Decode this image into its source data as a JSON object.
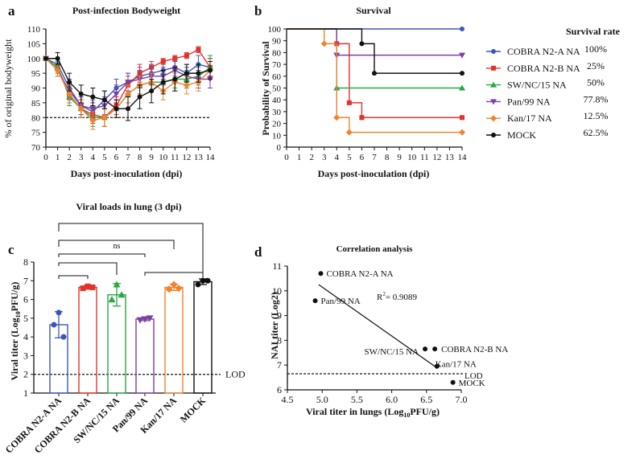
{
  "panel_a": {
    "letter": "a",
    "chart_data": {
      "type": "line",
      "title": "Post-infection Bodyweight",
      "xlabel": "Days post-inoculation (dpi)",
      "ylabel": "% of original bodyweight",
      "xlim": [
        0,
        14
      ],
      "ylim": [
        70,
        110
      ],
      "x_ticks": [
        0,
        1,
        2,
        3,
        4,
        5,
        6,
        7,
        8,
        9,
        10,
        11,
        12,
        13,
        14
      ],
      "y_ticks": [
        70,
        75,
        80,
        85,
        90,
        95,
        100,
        105,
        110
      ],
      "reference_line": 80,
      "x": [
        0,
        1,
        2,
        3,
        4,
        5,
        6,
        7,
        8,
        9,
        10,
        11,
        12,
        13,
        14
      ],
      "series": [
        {
          "name": "COBRA N2-A NA",
          "color": "#3b57b5",
          "marker": "circle",
          "values": [
            100,
            98,
            90,
            84,
            82,
            86,
            90,
            92,
            94,
            95,
            96,
            97,
            95,
            98,
            97
          ],
          "errors": [
            0,
            2,
            3,
            3,
            3,
            3,
            3,
            3,
            3,
            3,
            3,
            3,
            3,
            3,
            3
          ]
        },
        {
          "name": "COBRA N2-B NA",
          "color": "#e3322b",
          "marker": "square",
          "values": [
            100,
            97,
            88,
            83,
            81,
            80,
            84,
            91,
            95,
            97,
            99,
            100,
            101,
            103,
            97
          ],
          "errors": [
            0,
            2,
            3,
            3,
            3,
            3,
            3,
            3,
            3,
            2,
            1,
            1,
            1,
            1,
            3
          ]
        },
        {
          "name": "SW/NC/15 NA",
          "color": "#27a844",
          "marker": "triangle",
          "values": [
            100,
            97,
            87,
            83,
            80,
            80,
            83,
            88,
            91,
            92,
            92,
            93,
            93,
            94,
            97
          ],
          "errors": [
            0,
            2,
            3,
            3,
            3,
            3,
            3,
            3,
            3,
            3,
            3,
            3,
            3,
            3,
            4
          ]
        },
        {
          "name": "Pan/99 NA",
          "color": "#7e3fa5",
          "marker": "triangle-down",
          "values": [
            100,
            96,
            89,
            84,
            83,
            84,
            88,
            92,
            93,
            94,
            94,
            96,
            94,
            93,
            93
          ],
          "errors": [
            0,
            2,
            3,
            3,
            3,
            3,
            3,
            3,
            3,
            3,
            3,
            3,
            3,
            3,
            3
          ]
        },
        {
          "name": "Kan/17 NA",
          "color": "#f0822c",
          "marker": "diamond",
          "values": [
            100,
            96,
            88,
            83,
            79,
            80,
            83,
            88,
            91,
            92,
            89,
            92,
            91,
            92,
            96
          ],
          "errors": [
            0,
            2,
            3,
            3,
            3,
            3,
            3,
            3,
            3,
            3,
            3,
            3,
            3,
            3,
            3
          ]
        },
        {
          "name": "MOCK",
          "color": "#111111",
          "marker": "circle",
          "values": [
            100,
            100,
            92,
            88,
            87,
            86,
            83,
            83,
            87,
            89,
            92,
            93,
            95,
            95,
            96
          ],
          "errors": [
            0,
            2,
            3,
            3,
            3,
            3,
            3,
            4,
            4,
            4,
            4,
            4,
            3,
            3,
            3
          ]
        }
      ]
    }
  },
  "panel_b": {
    "letter": "b",
    "chart_data": {
      "type": "line",
      "step": true,
      "title": "Survival",
      "xlabel": "Days post-inoculation (dpi)",
      "ylabel": "Probability of Survival",
      "xlim": [
        0,
        14
      ],
      "ylim": [
        0,
        100
      ],
      "x_ticks": [
        0,
        1,
        2,
        3,
        4,
        5,
        6,
        7,
        8,
        9,
        10,
        11,
        12,
        13,
        14
      ],
      "y_ticks": [
        0,
        10,
        20,
        30,
        40,
        50,
        60,
        70,
        80,
        90,
        100
      ],
      "legend_title": "Survival rate",
      "series": [
        {
          "name": "COBRA N2-A NA",
          "color": "#3b57b5",
          "marker": "circle",
          "rate": "100%",
          "x": [
            0,
            14
          ],
          "y": [
            100,
            100
          ],
          "marker_points": [
            [
              14,
              100
            ]
          ]
        },
        {
          "name": "COBRA N2-B NA",
          "color": "#e3322b",
          "marker": "square",
          "rate": "25%",
          "x": [
            0,
            4,
            5,
            6,
            14
          ],
          "y": [
            100,
            87.5,
            37.5,
            25,
            25
          ],
          "marker_points": [
            [
              4,
              87.5
            ],
            [
              5,
              37.5
            ],
            [
              6,
              25
            ],
            [
              14,
              25
            ]
          ]
        },
        {
          "name": "SW/NC/15 NA",
          "color": "#27a844",
          "marker": "triangle",
          "rate": "50%",
          "x": [
            0,
            4,
            14
          ],
          "y": [
            100,
            50,
            50
          ],
          "marker_points": [
            [
              4,
              50
            ],
            [
              14,
              50
            ]
          ]
        },
        {
          "name": "Pan/99 NA",
          "color": "#7e3fa5",
          "marker": "triangle-down",
          "rate": "77.8%",
          "x": [
            0,
            4,
            14
          ],
          "y": [
            100,
            77.8,
            77.8
          ],
          "marker_points": [
            [
              4,
              77.8
            ],
            [
              14,
              77.8
            ]
          ]
        },
        {
          "name": "Kan/17 NA",
          "color": "#f0822c",
          "marker": "diamond",
          "rate": "12.5%",
          "x": [
            0,
            3,
            4,
            5,
            14
          ],
          "y": [
            100,
            87.5,
            25,
            12.5,
            12.5
          ],
          "marker_points": [
            [
              3,
              87.5
            ],
            [
              4,
              25
            ],
            [
              5,
              12.5
            ],
            [
              14,
              12.5
            ]
          ]
        },
        {
          "name": "MOCK",
          "color": "#111111",
          "marker": "circle",
          "rate": "62.5%",
          "x": [
            0,
            6,
            7,
            14
          ],
          "y": [
            100,
            87.5,
            62.5,
            62.5
          ],
          "marker_points": [
            [
              6,
              87.5
            ],
            [
              7,
              62.5
            ],
            [
              14,
              62.5
            ]
          ]
        }
      ]
    }
  },
  "panel_c": {
    "letter": "c",
    "chart_data": {
      "type": "bar",
      "title": "Viral loads in lung (3 dpi)",
      "ylabel_main": "Viral titer (Log",
      "ylabel_sub": "10",
      "ylabel_end": "PFU/g)",
      "ylim": [
        1,
        8
      ],
      "y_ticks": [
        1,
        2,
        3,
        4,
        5,
        6,
        7,
        8
      ],
      "lod_value": 2,
      "lod_label": "LOD",
      "categories": [
        "COBRA N2-A NA",
        "COBRA N2-B NA",
        "SW/NC/15 NA",
        "Pan/99 NA",
        "Kan/17 NA",
        "MOCK"
      ],
      "colors": [
        "#3b57b5",
        "#e3322b",
        "#27a844",
        "#7e3fa5",
        "#f0822c",
        "#111111"
      ],
      "markers": [
        "circle",
        "square",
        "triangle",
        "triangle-down",
        "diamond",
        "circle"
      ],
      "values": [
        4.65,
        6.65,
        6.25,
        4.95,
        6.65,
        6.95
      ],
      "errors": [
        0.7,
        0.1,
        0.6,
        0.08,
        0.17,
        0.15
      ],
      "points": [
        [
          5.3,
          4.65,
          4.0
        ],
        [
          6.7,
          6.6,
          6.65
        ],
        [
          6.8,
          6.0,
          6.25
        ],
        [
          4.95,
          4.9,
          5.0
        ],
        [
          6.8,
          6.55,
          6.6
        ],
        [
          7.0,
          6.8,
          7.0
        ]
      ],
      "significance_label": "ns"
    }
  },
  "panel_d": {
    "letter": "d",
    "chart_data": {
      "type": "scatter",
      "title": "Correlation analysis",
      "xlabel_main": "Viral titer in lungs (Log",
      "xlabel_sub": "10",
      "xlabel_end": "PFU/g)",
      "ylabel": "NAI titer (Log2)",
      "xlim": [
        4.5,
        7.0
      ],
      "ylim": [
        6,
        11
      ],
      "x_ticks": [
        4.5,
        5.0,
        5.5,
        6.0,
        6.5,
        7.0
      ],
      "x_tick_labels": [
        "4.5",
        "5.0",
        "5.5",
        "6.0",
        "6.5",
        "7.0"
      ],
      "y_ticks": [
        6,
        7,
        8,
        9,
        10,
        11
      ],
      "r2_label": "R",
      "r2_sup": "2",
      "r2_text": "=   0.9089",
      "lod_value": 6.65,
      "lod_label": "LOD",
      "points": [
        {
          "label": "COBRA N2-A NA",
          "x": 4.98,
          "y": 10.7
        },
        {
          "label": "Pan/99 NA",
          "x": 4.9,
          "y": 9.6
        },
        {
          "label": "SW/NC/15 NA",
          "x": 6.48,
          "y": 7.65
        },
        {
          "label": "COBRA N2-B NA",
          "x": 6.62,
          "y": 7.65
        },
        {
          "label": "Kan/17 NA",
          "x": 6.65,
          "y": 6.95
        },
        {
          "label": "MOCK",
          "x": 6.88,
          "y": 6.3
        }
      ],
      "regression": {
        "x": [
          4.95,
          6.62
        ],
        "y": [
          10.25,
          6.95
        ]
      }
    }
  }
}
